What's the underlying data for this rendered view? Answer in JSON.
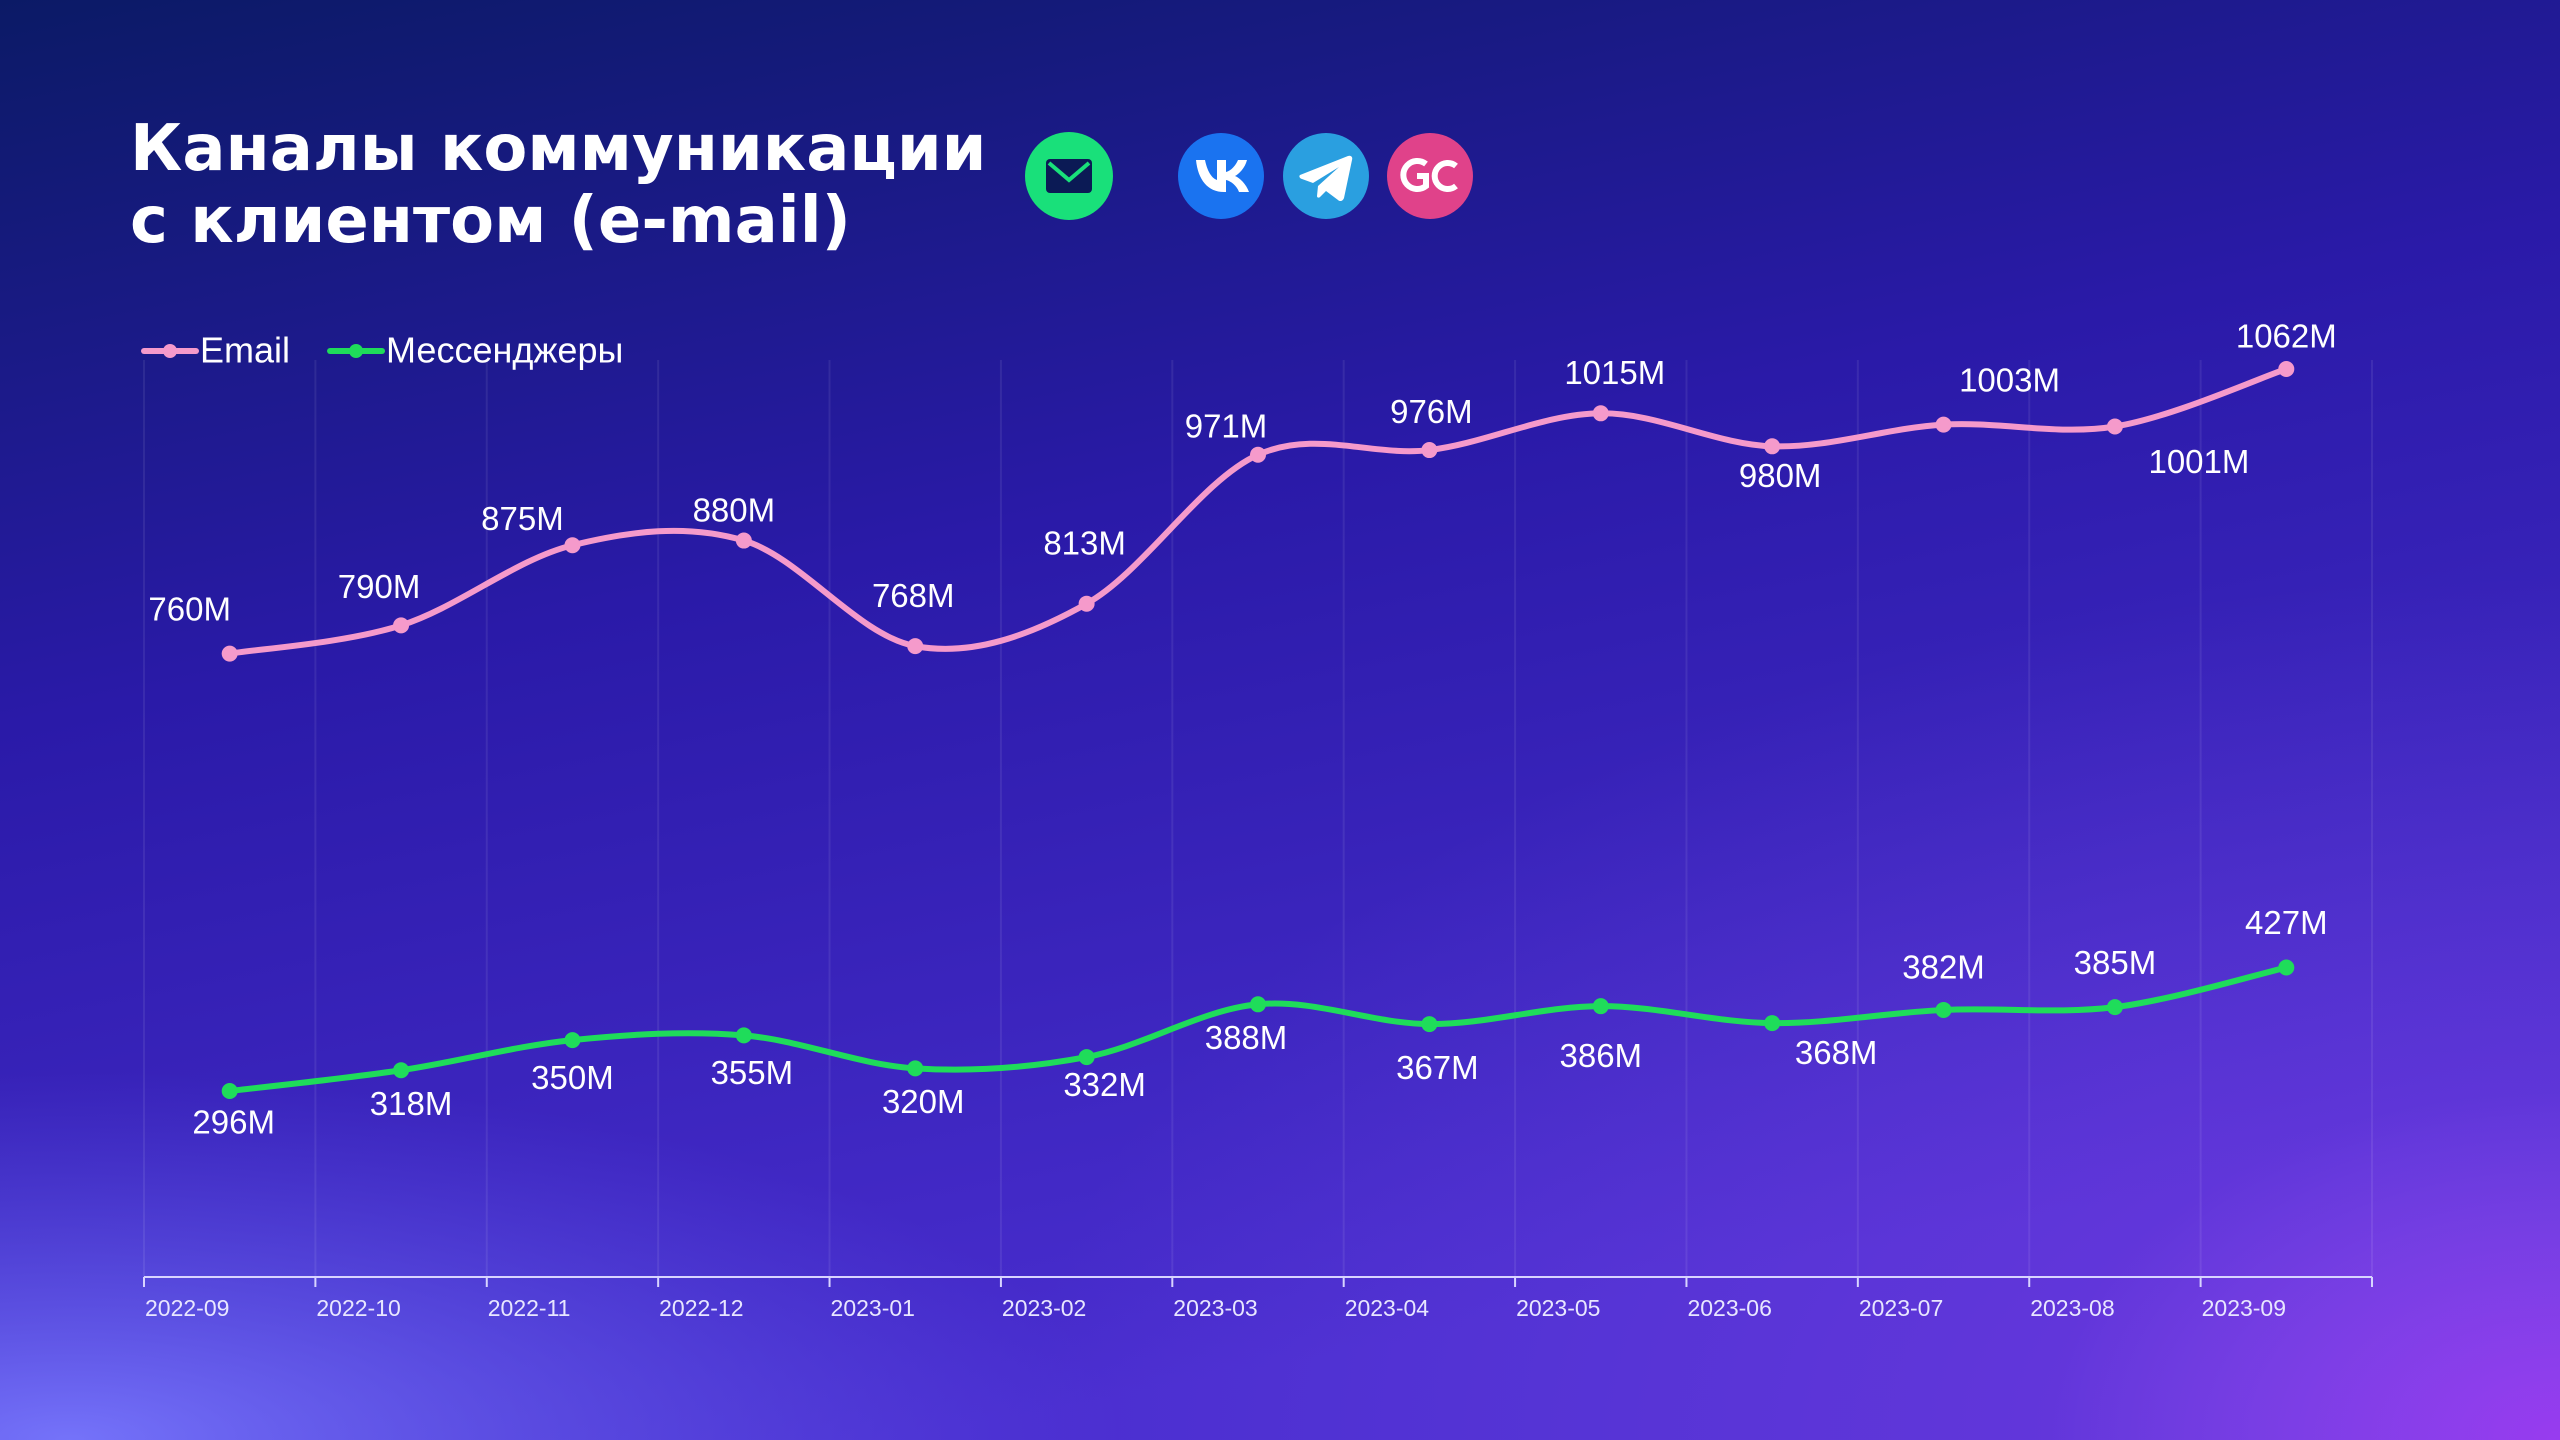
{
  "chart_data": {
    "type": "line",
    "title": [
      "Каналы коммуникации",
      "с клиентом (e-mail)"
    ],
    "categories": [
      "2022-09",
      "2022-10",
      "2022-11",
      "2022-12",
      "2023-01",
      "2023-02",
      "2023-03",
      "2023-04",
      "2023-05",
      "2023-06",
      "2023-07",
      "2023-08",
      "2023-09"
    ],
    "series": [
      {
        "name": "Email",
        "color": "#f59acb",
        "values": [
          760,
          790,
          875,
          880,
          768,
          813,
          971,
          976,
          1015,
          980,
          1003,
          1001,
          1062
        ],
        "value_labels": [
          "760M",
          "790M",
          "875M",
          "880M",
          "768M",
          "813M",
          "971M",
          "976M",
          "1015M",
          "980M",
          "1003M",
          "1001M",
          "1062M"
        ]
      },
      {
        "name": "Мессенджеры",
        "color": "#1fdc5a",
        "values": [
          296,
          318,
          350,
          355,
          320,
          332,
          388,
          367,
          386,
          368,
          382,
          385,
          427
        ],
        "value_labels": [
          "296M",
          "318M",
          "350M",
          "355M",
          "320M",
          "332M",
          "388M",
          "367M",
          "386M",
          "368M",
          "382M",
          "385M",
          "427M"
        ]
      }
    ],
    "legend": "top-left",
    "grid": true,
    "smooth": true
  }
}
